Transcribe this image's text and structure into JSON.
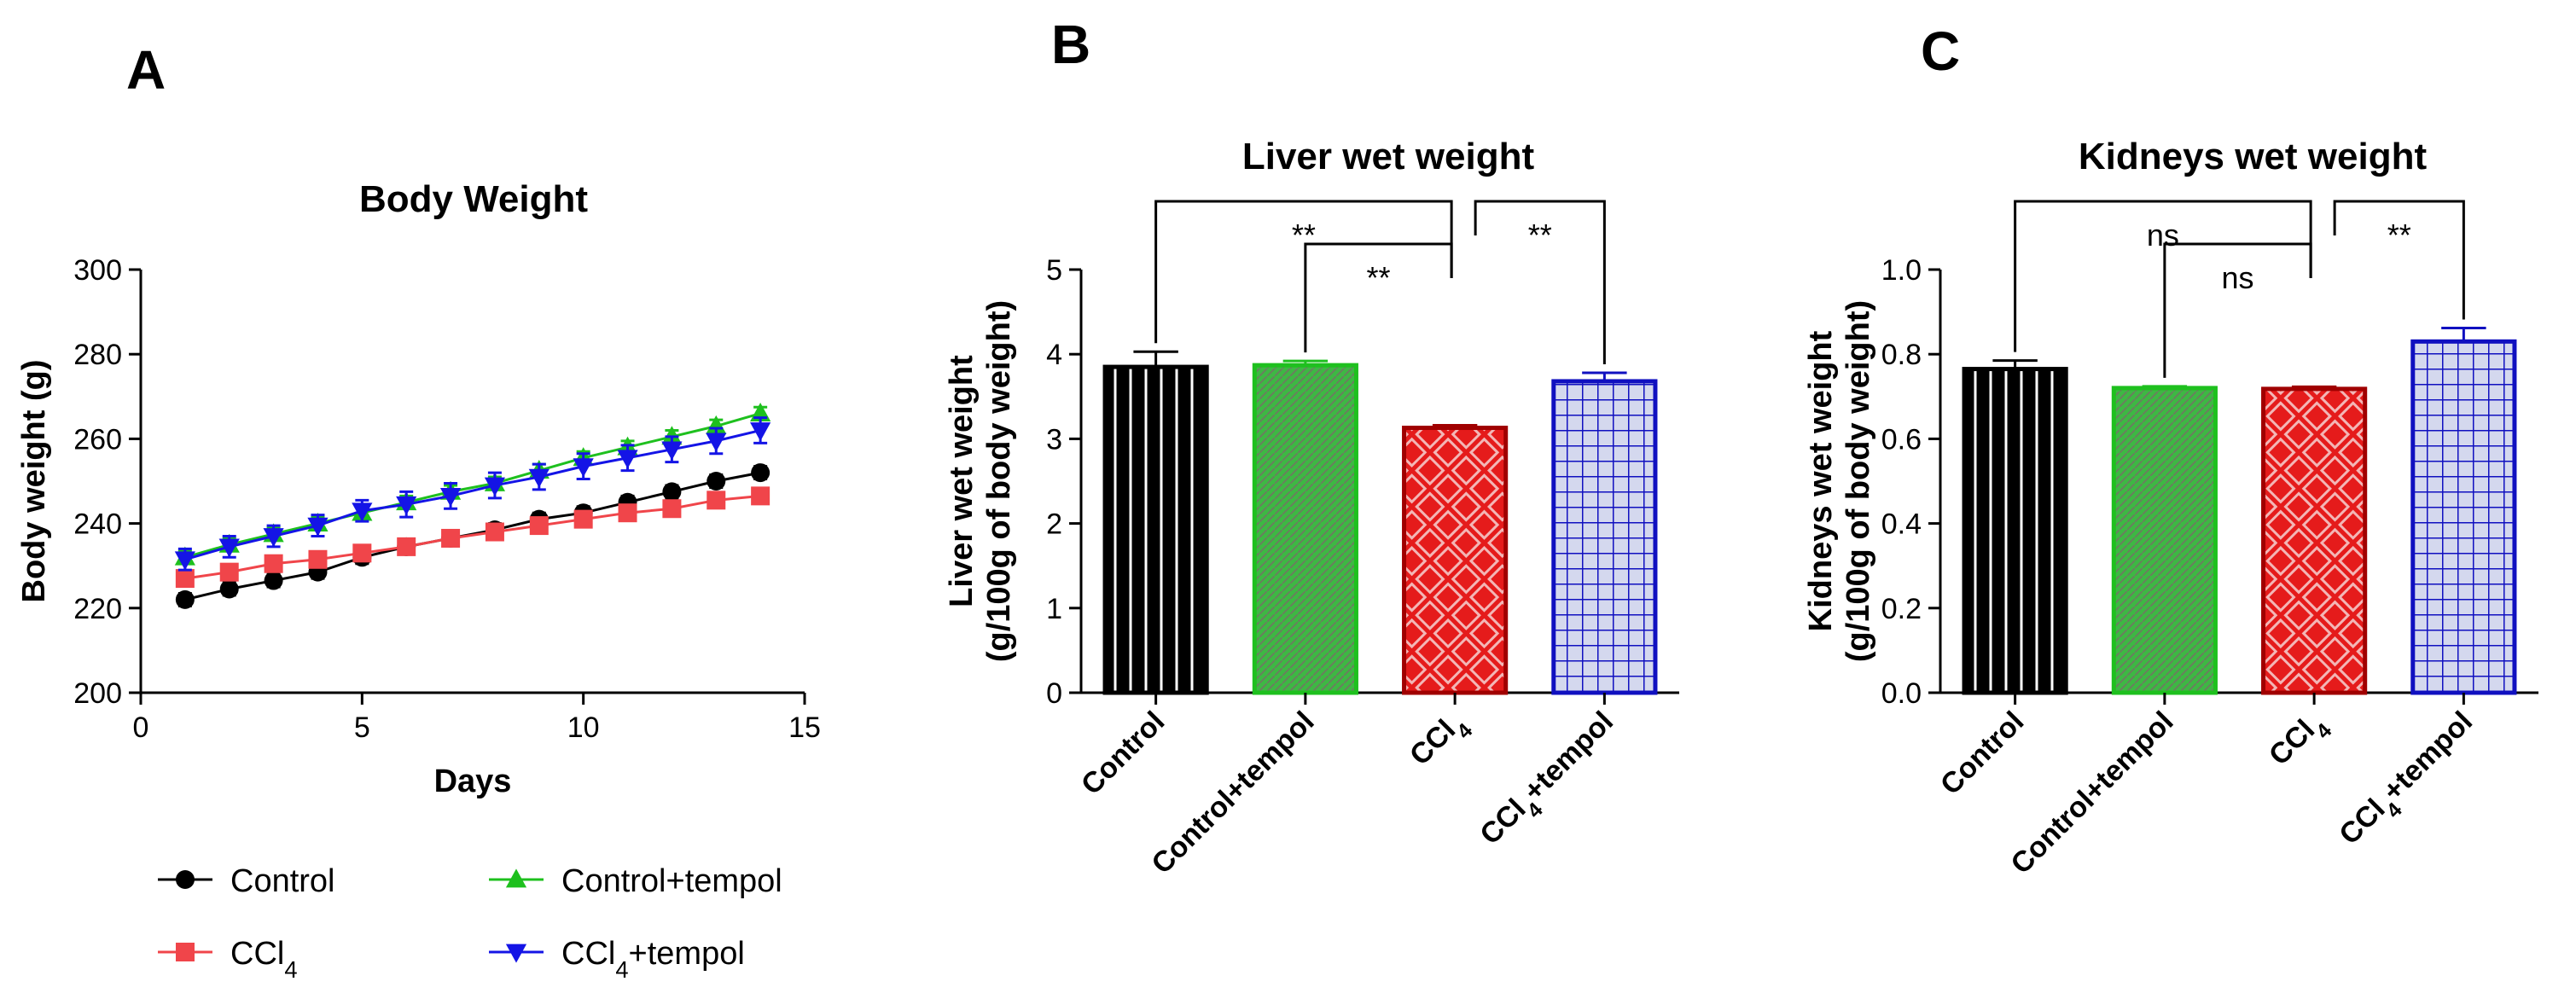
{
  "chart_data": [
    {
      "panel": "A",
      "type": "line",
      "title": "Body Weight",
      "xlabel": "Days",
      "ylabel": "Body weight (g)",
      "xlim": [
        0,
        15
      ],
      "ylim": [
        200,
        300
      ],
      "xticks": [
        "0",
        "5",
        "10",
        "15"
      ],
      "yticks": [
        "200",
        "220",
        "240",
        "260",
        "280",
        "300"
      ],
      "x": [
        1,
        2,
        3,
        4,
        5,
        6,
        7,
        8,
        9,
        10,
        11,
        12,
        13,
        14
      ],
      "series": [
        {
          "name": "Control",
          "sub": "",
          "after": "",
          "color": "#000000",
          "marker": "circle",
          "values": [
            222,
            224.5,
            226.5,
            228.5,
            232,
            234.5,
            236.5,
            238.5,
            241,
            242.5,
            245,
            247.5,
            250,
            252
          ],
          "err": [
            1.5,
            1.5,
            1.5,
            1.5,
            1.5,
            1.5,
            1.5,
            1.5,
            1.5,
            1.5,
            1.5,
            1.5,
            1.5,
            1.5
          ]
        },
        {
          "name": "CCl",
          "sub": "4",
          "after": "",
          "color": "#f0454a",
          "marker": "square",
          "values": [
            227,
            228.5,
            230.5,
            231.5,
            233,
            234.5,
            236.5,
            238,
            239.5,
            241,
            242.5,
            243.5,
            245.5,
            246.5
          ],
          "err": [
            1.5,
            1.5,
            1.5,
            1.5,
            1.5,
            1.5,
            1.5,
            1.5,
            1.5,
            1.5,
            1.5,
            1.5,
            1.5,
            1.5
          ]
        },
        {
          "name": "Control+tempol",
          "sub": "",
          "after": "",
          "color": "#1ec01e",
          "marker": "triangle",
          "values": [
            232,
            235,
            237.5,
            240,
            242.5,
            245,
            247.5,
            249.5,
            252.5,
            255.5,
            258,
            260.5,
            263,
            266
          ],
          "err": [
            1.5,
            1.5,
            1.5,
            1.5,
            1.5,
            1.5,
            1.5,
            1.5,
            1.5,
            1.5,
            1.5,
            1.5,
            1.5,
            1.5
          ]
        },
        {
          "name": "CCl",
          "sub": "4",
          "after": "+tempol",
          "color": "#1414e6",
          "marker": "triangle-down",
          "values": [
            231.5,
            234.5,
            237,
            239.5,
            243,
            244.5,
            246.5,
            249,
            251,
            253.5,
            255.5,
            257.5,
            259.5,
            262
          ],
          "err": [
            2.5,
            2.5,
            2.5,
            2.5,
            2.5,
            3,
            3,
            3,
            3,
            3,
            3,
            3,
            3,
            3
          ]
        }
      ]
    },
    {
      "panel": "B",
      "type": "bar",
      "title": "Liver wet weight",
      "ylabel_line1": "Liver wet weight",
      "ylabel_line2": "(g/100g of body weight)",
      "ylim": [
        0,
        5
      ],
      "yticks": [
        "0",
        "1",
        "2",
        "3",
        "4",
        "5"
      ],
      "categories": [
        {
          "pre": "Control",
          "sub": "",
          "post": ""
        },
        {
          "pre": "Control+tempol",
          "sub": "",
          "post": ""
        },
        {
          "pre": "CCl",
          "sub": "4",
          "post": ""
        },
        {
          "pre": "CCl",
          "sub": "4",
          "post": "+tempol"
        }
      ],
      "values": [
        3.85,
        3.87,
        3.13,
        3.68
      ],
      "err": [
        0.18,
        0.05,
        0.03,
        0.1
      ],
      "bar_styles": [
        {
          "fill": "#000000",
          "stroke": "#000000",
          "pattern": "vstripe"
        },
        {
          "fill": "#35b840",
          "stroke": "#1ec01e",
          "pattern": "diag"
        },
        {
          "fill": "#e51b1b",
          "stroke": "#a00000",
          "pattern": "cross"
        },
        {
          "fill": "#d2d6ec",
          "stroke": "#1010c0",
          "pattern": "grid"
        }
      ],
      "significance": [
        {
          "label": "**",
          "from": 0,
          "to": 2
        },
        {
          "label": "**",
          "from": 1,
          "to": 2
        },
        {
          "label": "**",
          "from": 2,
          "to": 3
        }
      ]
    },
    {
      "panel": "C",
      "type": "bar",
      "title": "Kidneys wet weight",
      "ylabel_line1": "Kidneys wet weight",
      "ylabel_line2": "(g/100g of body weight)",
      "ylim": [
        0,
        1.0
      ],
      "yticks": [
        "0.0",
        "0.2",
        "0.4",
        "0.6",
        "0.8",
        "1.0"
      ],
      "categories": [
        {
          "pre": "Control",
          "sub": "",
          "post": ""
        },
        {
          "pre": "Control+tempol",
          "sub": "",
          "post": ""
        },
        {
          "pre": "CCl",
          "sub": "4",
          "post": ""
        },
        {
          "pre": "CCl",
          "sub": "4",
          "post": "+tempol"
        }
      ],
      "values": [
        0.765,
        0.72,
        0.718,
        0.83
      ],
      "err": [
        0.02,
        0.004,
        0.005,
        0.032
      ],
      "bar_styles": [
        {
          "fill": "#000000",
          "stroke": "#000000",
          "pattern": "vstripe"
        },
        {
          "fill": "#35b840",
          "stroke": "#1ec01e",
          "pattern": "diag"
        },
        {
          "fill": "#e51b1b",
          "stroke": "#a00000",
          "pattern": "cross"
        },
        {
          "fill": "#d2d6ec",
          "stroke": "#1010c0",
          "pattern": "grid"
        }
      ],
      "significance": [
        {
          "label": "ns",
          "from": 0,
          "to": 2
        },
        {
          "label": "ns",
          "from": 1,
          "to": 2
        },
        {
          "label": "**",
          "from": 2,
          "to": 3
        }
      ]
    }
  ]
}
